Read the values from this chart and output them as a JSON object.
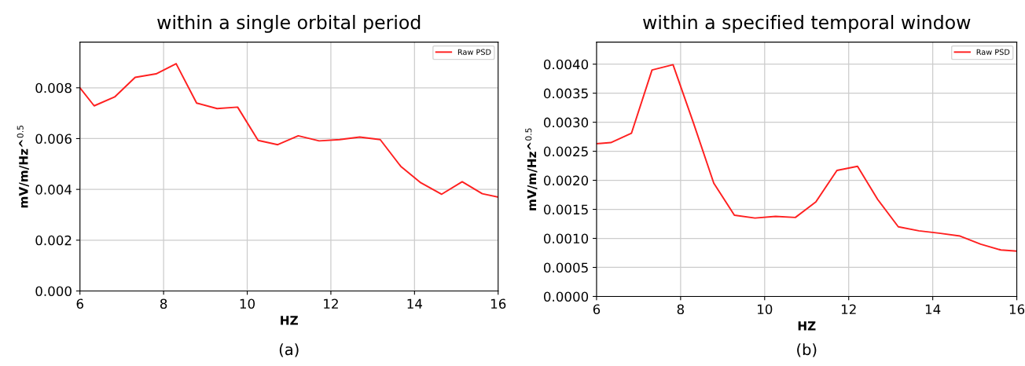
{
  "chart_data": [
    {
      "type": "line",
      "title": "within a single orbital period",
      "xlabel": "HZ",
      "ylabel": "mV/m/Hz^$^{0.5}$",
      "x": [
        6,
        6.34,
        6.83,
        7.32,
        7.82,
        8.3,
        8.79,
        9.28,
        9.77,
        10.26,
        10.73,
        11.22,
        11.72,
        12.21,
        12.69,
        13.18,
        13.67,
        14.15,
        14.65,
        15.14,
        15.62,
        16
      ],
      "series": [
        {
          "name": "Raw PSD",
          "color": "#ff2020",
          "values": [
            0.008,
            0.00729,
            0.00764,
            0.00841,
            0.00855,
            0.00895,
            0.0074,
            0.00718,
            0.00724,
            0.00593,
            0.00576,
            0.00611,
            0.00591,
            0.00596,
            0.00606,
            0.00596,
            0.00491,
            0.00426,
            0.00381,
            0.0043,
            0.00383,
            0.0037
          ]
        }
      ],
      "xlim": [
        6,
        16
      ],
      "xticks": [
        6,
        8,
        10,
        12,
        14,
        16
      ],
      "ylim": [
        0,
        0.0098
      ],
      "yticks": [
        {
          "value": 0,
          "label": "0.000"
        },
        {
          "value": 0.002,
          "label": "0.002"
        },
        {
          "value": 0.004,
          "label": "0.004"
        },
        {
          "value": 0.006,
          "label": "0.006"
        },
        {
          "value": 0.008,
          "label": "0.008"
        }
      ],
      "grid": true,
      "legend": "top right",
      "annotations": [
        "(a)"
      ]
    },
    {
      "type": "line",
      "title": "within a specified temporal window",
      "xlabel": "HZ",
      "ylabel": "mV/m/Hz^$^{0.5}$",
      "x": [
        6,
        6.34,
        6.83,
        7.32,
        7.82,
        8.3,
        8.79,
        9.28,
        9.77,
        10.26,
        10.73,
        11.22,
        11.72,
        12.21,
        12.69,
        13.18,
        13.67,
        14.15,
        14.65,
        15.14,
        15.62,
        16
      ],
      "series": [
        {
          "name": "Raw PSD",
          "color": "#ff2020",
          "values": [
            0.00263,
            0.00265,
            0.00281,
            0.0039,
            0.00399,
            0.003,
            0.00195,
            0.0014,
            0.00135,
            0.00138,
            0.00136,
            0.00163,
            0.00217,
            0.00224,
            0.00167,
            0.0012,
            0.00113,
            0.00109,
            0.00104,
            0.0009,
            0.0008,
            0.00078
          ]
        }
      ],
      "xlim": [
        6,
        16
      ],
      "xticks": [
        6,
        8,
        10,
        12,
        14,
        16
      ],
      "ylim": [
        0,
        0.00438
      ],
      "yticks": [
        {
          "value": 0,
          "label": "0.0000"
        },
        {
          "value": 0.0005,
          "label": "0.0005"
        },
        {
          "value": 0.001,
          "label": "0.0010"
        },
        {
          "value": 0.0015,
          "label": "0.0015"
        },
        {
          "value": 0.002,
          "label": "0.0020"
        },
        {
          "value": 0.0025,
          "label": "0.0025"
        },
        {
          "value": 0.003,
          "label": "0.0030"
        },
        {
          "value": 0.0035,
          "label": "0.0035"
        },
        {
          "value": 0.004,
          "label": "0.0040"
        }
      ],
      "grid": true,
      "legend": "top right",
      "annotations": [
        "(b)"
      ]
    }
  ]
}
